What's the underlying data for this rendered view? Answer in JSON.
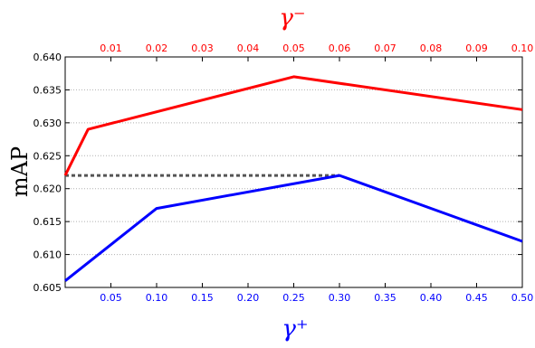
{
  "chart_data": {
    "type": "line",
    "ylabel": "mAP",
    "ylim": [
      0.605,
      0.64
    ],
    "yticks": [
      "0.605",
      "0.610",
      "0.615",
      "0.620",
      "0.625",
      "0.630",
      "0.635",
      "0.640"
    ],
    "grid": "horizontal dotted",
    "top_axis": {
      "label": "γ⁻",
      "range": [
        0.0,
        0.1
      ],
      "ticks": [
        "0.01",
        "0.02",
        "0.03",
        "0.04",
        "0.05",
        "0.06",
        "0.07",
        "0.08",
        "0.09",
        "0.10"
      ],
      "color": "#ff0000"
    },
    "bottom_axis": {
      "label": "γ⁺",
      "range": [
        0.0,
        0.5
      ],
      "ticks": [
        "0.05",
        "0.10",
        "0.15",
        "0.20",
        "0.25",
        "0.30",
        "0.35",
        "0.40",
        "0.45",
        "0.50"
      ],
      "color": "#0000ff"
    },
    "series": [
      {
        "axis": "top",
        "color": "#ff0000",
        "x": [
          0.0,
          0.005,
          0.05,
          0.1
        ],
        "y": [
          0.622,
          0.629,
          0.637,
          0.632
        ]
      },
      {
        "axis": "bottom",
        "color": "#0000ff",
        "x": [
          0.0,
          0.1,
          0.3,
          0.5
        ],
        "y": [
          0.606,
          0.617,
          0.622,
          0.612
        ]
      }
    ],
    "reference_line": {
      "y": 0.622,
      "x_end_bottom": 0.3,
      "style": "dashed",
      "color": "#555555"
    }
  }
}
